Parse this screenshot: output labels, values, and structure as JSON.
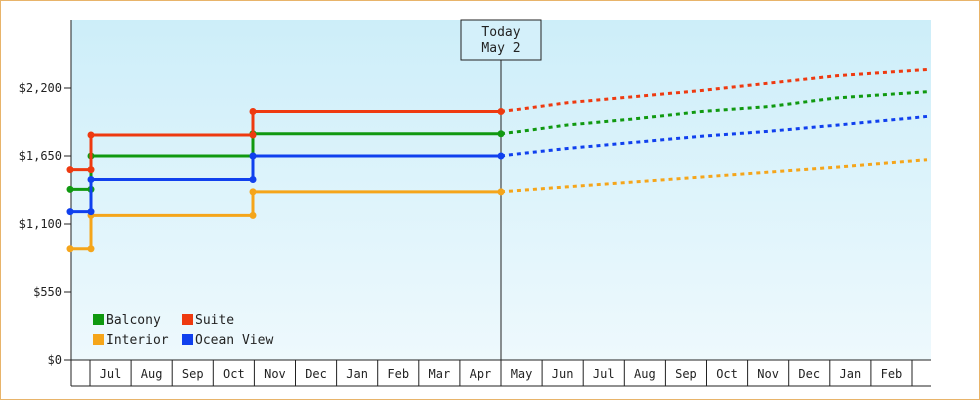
{
  "chart_data": {
    "type": "line",
    "title": "",
    "xlabel": "",
    "ylabel": "",
    "ylim": [
      0,
      2750
    ],
    "y_ticks": [
      {
        "value": 0,
        "label": "$0"
      },
      {
        "value": 550,
        "label": "$550"
      },
      {
        "value": 1100,
        "label": "$1,100"
      },
      {
        "value": 1650,
        "label": "$1,650"
      },
      {
        "value": 2200,
        "label": "$2,200"
      }
    ],
    "x_range_months": [
      -0.2,
      20.5
    ],
    "x_months": [
      {
        "label": "Jul",
        "index": 1
      },
      {
        "label": "Aug",
        "index": 2
      },
      {
        "label": "Sep",
        "index": 3
      },
      {
        "label": "Oct",
        "index": 4
      },
      {
        "label": "Nov",
        "index": 5
      },
      {
        "label": "Dec",
        "index": 6
      },
      {
        "label": "Jan",
        "index": 7
      },
      {
        "label": "Feb",
        "index": 8
      },
      {
        "label": "Mar",
        "index": 9
      },
      {
        "label": "Apr",
        "index": 10
      },
      {
        "label": "May",
        "index": 11
      },
      {
        "label": "Jun",
        "index": 12
      },
      {
        "label": "Jul",
        "index": 13
      },
      {
        "label": "Aug",
        "index": 14
      },
      {
        "label": "Sep",
        "index": 15
      },
      {
        "label": "Oct",
        "index": 16
      },
      {
        "label": "Nov",
        "index": 17
      },
      {
        "label": "Dec",
        "index": 18
      },
      {
        "label": "Jan",
        "index": 19
      },
      {
        "label": "Feb",
        "index": 20
      }
    ],
    "today": {
      "line1": "Today",
      "line2": "May 2",
      "x_month": 11.05
    },
    "grid": false,
    "legend_placement": "bottom-left",
    "background_gradient": [
      "#cdeef9",
      "#eef9fd"
    ],
    "series": [
      {
        "name": "Balcony",
        "color": "#109910",
        "points": [
          {
            "x": -0.2,
            "y": 1380
          },
          {
            "x": 0.3,
            "y": 1380
          },
          {
            "x": 0.3,
            "y": 1650
          },
          {
            "x": 4.3,
            "y": 1650
          },
          {
            "x": 4.3,
            "y": 1830
          },
          {
            "x": 11.05,
            "y": 1830
          }
        ],
        "forecast": [
          {
            "x": 11.05,
            "y": 1830
          },
          {
            "x": 11.5,
            "y": 1850
          },
          {
            "x": 12.5,
            "y": 1900
          },
          {
            "x": 14.0,
            "y": 1950
          },
          {
            "x": 15.5,
            "y": 2010
          },
          {
            "x": 17.0,
            "y": 2050
          },
          {
            "x": 18.5,
            "y": 2120
          },
          {
            "x": 20.5,
            "y": 2170
          }
        ]
      },
      {
        "name": "Suite",
        "color": "#ee3a10",
        "points": [
          {
            "x": -0.2,
            "y": 1540
          },
          {
            "x": 0.3,
            "y": 1540
          },
          {
            "x": 0.3,
            "y": 1820
          },
          {
            "x": 4.3,
            "y": 1820
          },
          {
            "x": 4.3,
            "y": 2010
          },
          {
            "x": 11.05,
            "y": 2010
          }
        ],
        "forecast": [
          {
            "x": 11.05,
            "y": 2010
          },
          {
            "x": 11.5,
            "y": 2030
          },
          {
            "x": 12.5,
            "y": 2080
          },
          {
            "x": 14.0,
            "y": 2130
          },
          {
            "x": 15.5,
            "y": 2180
          },
          {
            "x": 17.0,
            "y": 2240
          },
          {
            "x": 18.5,
            "y": 2300
          },
          {
            "x": 20.5,
            "y": 2350
          }
        ]
      },
      {
        "name": "Interior",
        "color": "#f5a51a",
        "points": [
          {
            "x": -0.2,
            "y": 900
          },
          {
            "x": 0.3,
            "y": 900
          },
          {
            "x": 0.3,
            "y": 1170
          },
          {
            "x": 4.3,
            "y": 1170
          },
          {
            "x": 4.3,
            "y": 1360
          },
          {
            "x": 11.05,
            "y": 1360
          }
        ],
        "forecast": [
          {
            "x": 11.05,
            "y": 1360
          },
          {
            "x": 12.5,
            "y": 1400
          },
          {
            "x": 14.0,
            "y": 1440
          },
          {
            "x": 15.5,
            "y": 1480
          },
          {
            "x": 17.0,
            "y": 1520
          },
          {
            "x": 18.5,
            "y": 1560
          },
          {
            "x": 20.5,
            "y": 1620
          }
        ]
      },
      {
        "name": "Ocean View",
        "color": "#1040ee",
        "points": [
          {
            "x": -0.2,
            "y": 1200
          },
          {
            "x": 0.3,
            "y": 1200
          },
          {
            "x": 0.3,
            "y": 1460
          },
          {
            "x": 4.3,
            "y": 1460
          },
          {
            "x": 4.3,
            "y": 1650
          },
          {
            "x": 11.05,
            "y": 1650
          }
        ],
        "forecast": [
          {
            "x": 11.05,
            "y": 1650
          },
          {
            "x": 11.5,
            "y": 1670
          },
          {
            "x": 12.5,
            "y": 1710
          },
          {
            "x": 14.0,
            "y": 1760
          },
          {
            "x": 15.5,
            "y": 1810
          },
          {
            "x": 17.0,
            "y": 1850
          },
          {
            "x": 18.5,
            "y": 1900
          },
          {
            "x": 20.5,
            "y": 1970
          }
        ]
      }
    ],
    "legend_order": [
      "Balcony",
      "Suite",
      "Interior",
      "Ocean View"
    ]
  }
}
